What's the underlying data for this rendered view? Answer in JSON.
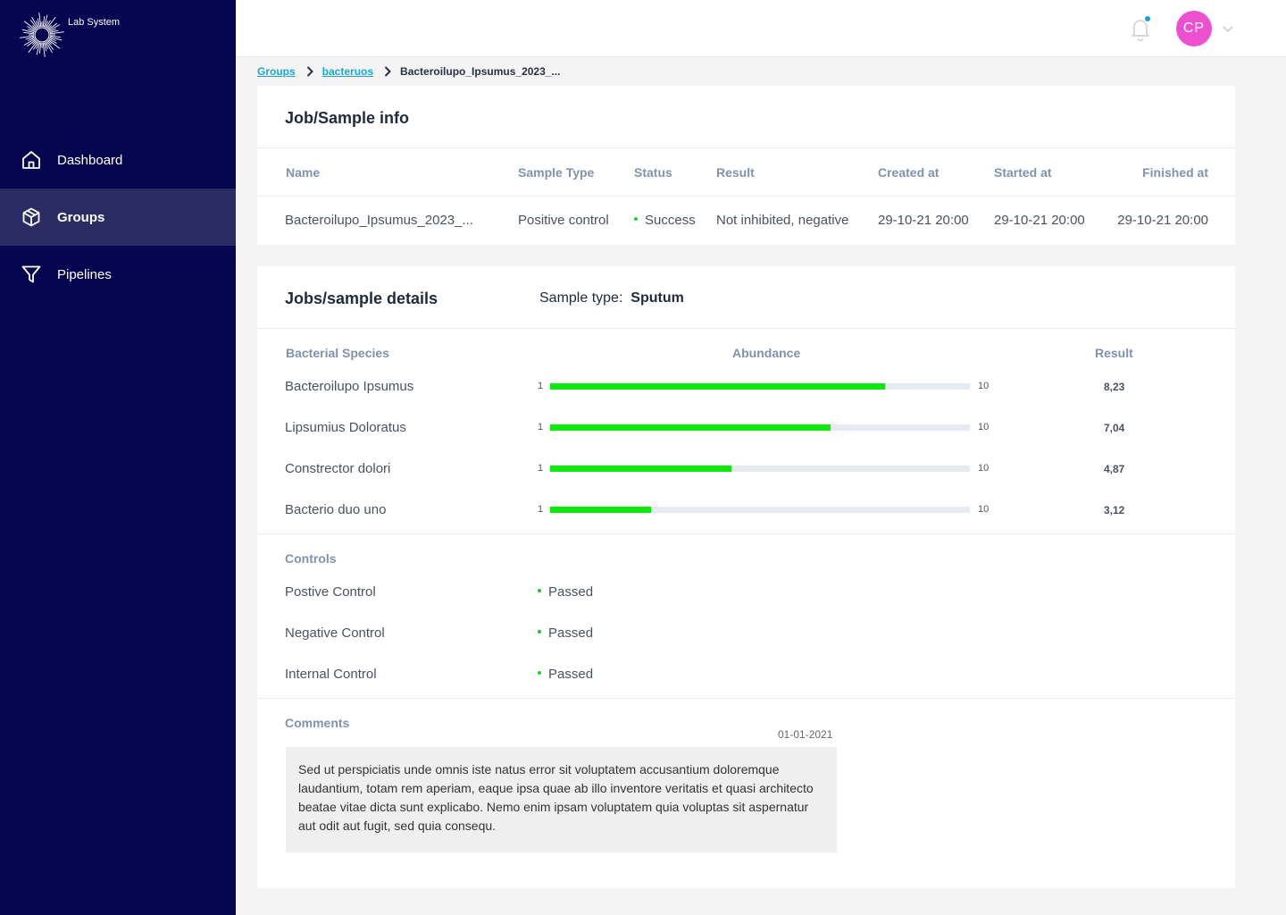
{
  "app": {
    "name": "Lab System"
  },
  "colors": {
    "sidebar": "#05064f",
    "sidebar_active": "#2b2c64",
    "accent": "#19a7d3",
    "avatar": "#ee4fd0",
    "bar_fill": "#0fe80f",
    "status_ok": "#22c933"
  },
  "sidebar": {
    "items": [
      {
        "label": "Dashboard",
        "icon": "home-icon"
      },
      {
        "label": "Groups",
        "icon": "cube-icon"
      },
      {
        "label": "Pipelines",
        "icon": "filter-icon"
      }
    ]
  },
  "header": {
    "avatar_initials": "CP"
  },
  "breadcrumb": {
    "items": [
      "Groups",
      "bacteruos",
      "Bacteroilupo_Ipsumus_2023_..."
    ]
  },
  "job_info": {
    "title": "Job/Sample info",
    "columns": [
      "Name",
      "Sample Type",
      "Status",
      "Result",
      "Created at",
      "Started at",
      "Finished at"
    ],
    "row": {
      "name": "Bacteroilupo_Ipsumus_2023_...",
      "sample_type": "Positive control",
      "status": "Success",
      "result": "Not inhibited, negative",
      "created_at": "29-10-21 20:00",
      "started_at": "29-10-21 20:00",
      "finished_at": "29-10-21 20:00"
    }
  },
  "details": {
    "title": "Jobs/sample details",
    "sample_type_label": "Sample type:",
    "sample_type_value": "Sputum",
    "columns": {
      "species": "Bacterial Species",
      "abundance": "Abundance",
      "result": "Result"
    },
    "scale_min": "1",
    "scale_max": "10",
    "species": [
      {
        "name": "Bacteroilupo Ipsumus",
        "value": 8.23,
        "result": "8,23"
      },
      {
        "name": "Lipsumius Doloratus",
        "value": 7.04,
        "result": "7,04"
      },
      {
        "name": "Constrector dolori",
        "value": 4.87,
        "result": "4,87"
      },
      {
        "name": "Bacterio duo uno",
        "value": 3.12,
        "result": "3,12"
      }
    ],
    "controls_title": "Controls",
    "controls": [
      {
        "name": "Postive Control",
        "status": "Passed"
      },
      {
        "name": "Negative Control",
        "status": "Passed"
      },
      {
        "name": "Internal Control",
        "status": "Passed"
      }
    ],
    "comments_title": "Comments",
    "comment_date": "01-01-2021",
    "comment_text": "Sed ut perspiciatis unde omnis iste natus error sit voluptatem accusantium doloremque laudantium, totam rem aperiam, eaque ipsa quae ab illo inventore veritatis et quasi architecto beatae vitae dicta sunt explicabo. Nemo enim ipsam voluptatem quia voluptas sit aspernatur aut odit aut fugit, sed quia consequ."
  }
}
